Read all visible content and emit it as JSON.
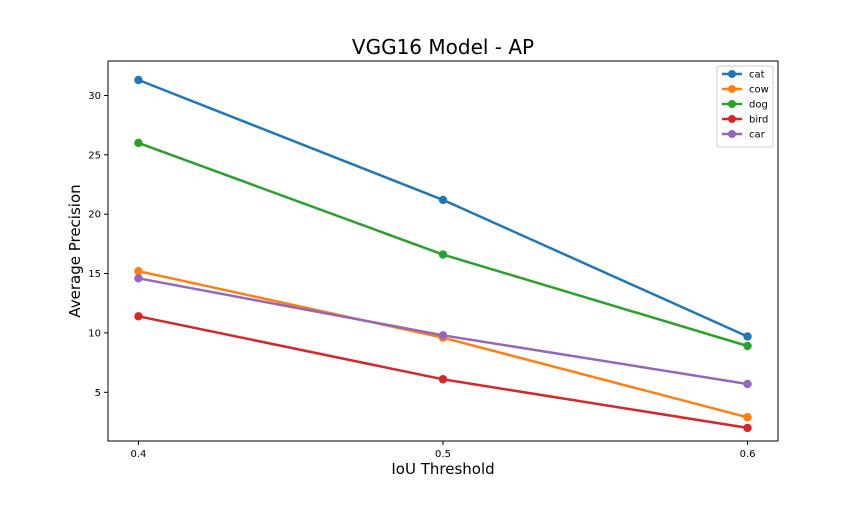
{
  "chart_data": {
    "type": "line",
    "title": "VGG16 Model - AP",
    "xlabel": "IoU Threshold",
    "ylabel": "Average Precision",
    "x": [
      0.4,
      0.5,
      0.6
    ],
    "x_tick_labels": [
      "0.4",
      "0.5",
      "0.6"
    ],
    "xlim": [
      0.39,
      0.61
    ],
    "ylim": [
      0.9,
      32.9
    ],
    "y_ticks": [
      5,
      10,
      15,
      20,
      25,
      30
    ],
    "y_tick_labels": [
      "5",
      "10",
      "15",
      "20",
      "25",
      "30"
    ],
    "grid": false,
    "legend_position": "top-right",
    "series": [
      {
        "name": "cat",
        "color": "#1f77b4",
        "values": [
          31.3,
          21.2,
          9.7
        ]
      },
      {
        "name": "cow",
        "color": "#ff7f0e",
        "values": [
          15.2,
          9.6,
          2.9
        ]
      },
      {
        "name": "dog",
        "color": "#2ca02c",
        "values": [
          26.0,
          16.6,
          8.9
        ]
      },
      {
        "name": "bird",
        "color": "#d62728",
        "values": [
          11.4,
          6.1,
          2.0
        ]
      },
      {
        "name": "car",
        "color": "#9467bd",
        "values": [
          14.6,
          9.8,
          5.7
        ]
      }
    ]
  }
}
